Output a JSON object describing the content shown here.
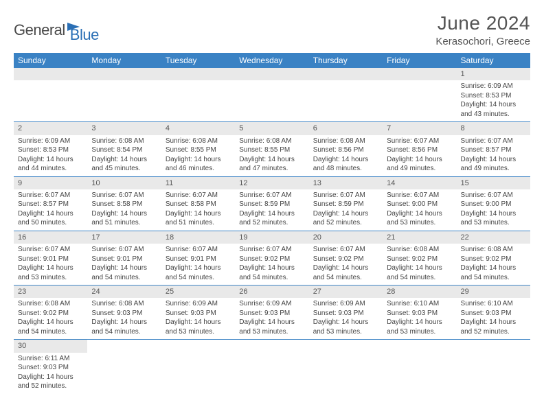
{
  "brand": {
    "part1": "General",
    "part2": "Blue"
  },
  "title": "June 2024",
  "location": "Kerasochori, Greece",
  "colors": {
    "header_bg": "#3a82c4",
    "header_text": "#ffffff",
    "daynum_bg": "#e9e9e9",
    "border": "#3a82c4",
    "brand_gray": "#4a4a4a",
    "brand_blue": "#2a6fb5",
    "body_text": "#444"
  },
  "weekdays": [
    "Sunday",
    "Monday",
    "Tuesday",
    "Wednesday",
    "Thursday",
    "Friday",
    "Saturday"
  ],
  "days": {
    "1": {
      "sunrise": "6:09 AM",
      "sunset": "8:53 PM",
      "daylight": "14 hours and 43 minutes."
    },
    "2": {
      "sunrise": "6:09 AM",
      "sunset": "8:53 PM",
      "daylight": "14 hours and 44 minutes."
    },
    "3": {
      "sunrise": "6:08 AM",
      "sunset": "8:54 PM",
      "daylight": "14 hours and 45 minutes."
    },
    "4": {
      "sunrise": "6:08 AM",
      "sunset": "8:55 PM",
      "daylight": "14 hours and 46 minutes."
    },
    "5": {
      "sunrise": "6:08 AM",
      "sunset": "8:55 PM",
      "daylight": "14 hours and 47 minutes."
    },
    "6": {
      "sunrise": "6:08 AM",
      "sunset": "8:56 PM",
      "daylight": "14 hours and 48 minutes."
    },
    "7": {
      "sunrise": "6:07 AM",
      "sunset": "8:56 PM",
      "daylight": "14 hours and 49 minutes."
    },
    "8": {
      "sunrise": "6:07 AM",
      "sunset": "8:57 PM",
      "daylight": "14 hours and 49 minutes."
    },
    "9": {
      "sunrise": "6:07 AM",
      "sunset": "8:57 PM",
      "daylight": "14 hours and 50 minutes."
    },
    "10": {
      "sunrise": "6:07 AM",
      "sunset": "8:58 PM",
      "daylight": "14 hours and 51 minutes."
    },
    "11": {
      "sunrise": "6:07 AM",
      "sunset": "8:58 PM",
      "daylight": "14 hours and 51 minutes."
    },
    "12": {
      "sunrise": "6:07 AM",
      "sunset": "8:59 PM",
      "daylight": "14 hours and 52 minutes."
    },
    "13": {
      "sunrise": "6:07 AM",
      "sunset": "8:59 PM",
      "daylight": "14 hours and 52 minutes."
    },
    "14": {
      "sunrise": "6:07 AM",
      "sunset": "9:00 PM",
      "daylight": "14 hours and 53 minutes."
    },
    "15": {
      "sunrise": "6:07 AM",
      "sunset": "9:00 PM",
      "daylight": "14 hours and 53 minutes."
    },
    "16": {
      "sunrise": "6:07 AM",
      "sunset": "9:01 PM",
      "daylight": "14 hours and 53 minutes."
    },
    "17": {
      "sunrise": "6:07 AM",
      "sunset": "9:01 PM",
      "daylight": "14 hours and 54 minutes."
    },
    "18": {
      "sunrise": "6:07 AM",
      "sunset": "9:01 PM",
      "daylight": "14 hours and 54 minutes."
    },
    "19": {
      "sunrise": "6:07 AM",
      "sunset": "9:02 PM",
      "daylight": "14 hours and 54 minutes."
    },
    "20": {
      "sunrise": "6:07 AM",
      "sunset": "9:02 PM",
      "daylight": "14 hours and 54 minutes."
    },
    "21": {
      "sunrise": "6:08 AM",
      "sunset": "9:02 PM",
      "daylight": "14 hours and 54 minutes."
    },
    "22": {
      "sunrise": "6:08 AM",
      "sunset": "9:02 PM",
      "daylight": "14 hours and 54 minutes."
    },
    "23": {
      "sunrise": "6:08 AM",
      "sunset": "9:02 PM",
      "daylight": "14 hours and 54 minutes."
    },
    "24": {
      "sunrise": "6:08 AM",
      "sunset": "9:03 PM",
      "daylight": "14 hours and 54 minutes."
    },
    "25": {
      "sunrise": "6:09 AM",
      "sunset": "9:03 PM",
      "daylight": "14 hours and 53 minutes."
    },
    "26": {
      "sunrise": "6:09 AM",
      "sunset": "9:03 PM",
      "daylight": "14 hours and 53 minutes."
    },
    "27": {
      "sunrise": "6:09 AM",
      "sunset": "9:03 PM",
      "daylight": "14 hours and 53 minutes."
    },
    "28": {
      "sunrise": "6:10 AM",
      "sunset": "9:03 PM",
      "daylight": "14 hours and 53 minutes."
    },
    "29": {
      "sunrise": "6:10 AM",
      "sunset": "9:03 PM",
      "daylight": "14 hours and 52 minutes."
    },
    "30": {
      "sunrise": "6:11 AM",
      "sunset": "9:03 PM",
      "daylight": "14 hours and 52 minutes."
    }
  },
  "labels": {
    "sunrise_prefix": "Sunrise: ",
    "sunset_prefix": "Sunset: ",
    "daylight_prefix": "Daylight: "
  },
  "layout": {
    "first_weekday_index": 6,
    "days_in_month": 30,
    "columns": 7
  }
}
